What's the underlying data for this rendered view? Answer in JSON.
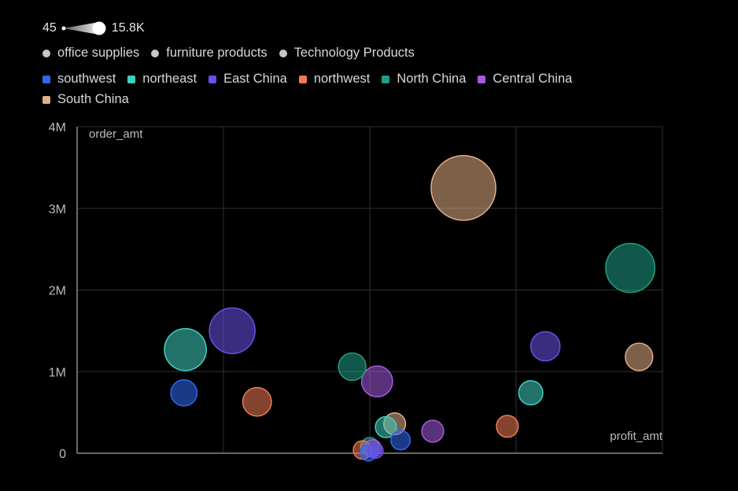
{
  "chart_data": {
    "type": "scatter",
    "subtype": "bubble",
    "xlabel": "profit_amt",
    "ylabel": "order_amt",
    "ylim": [
      0,
      4000000
    ],
    "xlim": [
      -600000,
      1400000
    ],
    "y_ticks": [
      {
        "value": 0,
        "label": "0"
      },
      {
        "value": 1000000,
        "label": "1M"
      },
      {
        "value": 2000000,
        "label": "2M"
      },
      {
        "value": 3000000,
        "label": "3M"
      },
      {
        "value": 4000000,
        "label": "4M"
      }
    ],
    "x_gridlines": [
      -600000,
      -100000,
      400000,
      900000,
      1400000
    ],
    "size_legend": {
      "min_label": "45",
      "max_label": "15.8K",
      "min": 45,
      "max": 15800
    },
    "shape_legend": [
      {
        "name": "office supplies",
        "color": "#c8c8c8"
      },
      {
        "name": "furniture products",
        "color": "#c8c8c8"
      },
      {
        "name": "Technology Products",
        "color": "#c8c8c8"
      }
    ],
    "color_legend": [
      {
        "name": "southwest",
        "color": "#2e6af0"
      },
      {
        "name": "northeast",
        "color": "#3fd0c0"
      },
      {
        "name": "East China",
        "color": "#6a50e6"
      },
      {
        "name": "northwest",
        "color": "#f07a55"
      },
      {
        "name": "North China",
        "color": "#1f9e86"
      },
      {
        "name": "Central China",
        "color": "#a45ae0"
      },
      {
        "name": "South China",
        "color": "#e2ae86"
      }
    ],
    "points": [
      {
        "region": "southwest",
        "x": -235000,
        "y": 740000,
        "size": 1800
      },
      {
        "region": "northeast",
        "x": -230000,
        "y": 1270000,
        "size": 5000
      },
      {
        "region": "East China",
        "x": -70000,
        "y": 1500000,
        "size": 6000
      },
      {
        "region": "northwest",
        "x": 15000,
        "y": 630000,
        "size": 2200
      },
      {
        "region": "North China",
        "x": 340000,
        "y": 1060000,
        "size": 2000
      },
      {
        "region": "Central China",
        "x": 425000,
        "y": 880000,
        "size": 2600
      },
      {
        "region": "South China",
        "x": 720000,
        "y": 3250000,
        "size": 12500
      },
      {
        "region": "East China",
        "x": 1000000,
        "y": 1310000,
        "size": 2300
      },
      {
        "region": "northeast",
        "x": 950000,
        "y": 740000,
        "size": 1500
      },
      {
        "region": "North China",
        "x": 1290000,
        "y": 2270000,
        "size": 7000
      },
      {
        "region": "South China",
        "x": 1320000,
        "y": 1180000,
        "size": 2000
      },
      {
        "region": "northwest",
        "x": 870000,
        "y": 330000,
        "size": 1200
      },
      {
        "region": "Central China",
        "x": 615000,
        "y": 270000,
        "size": 1200
      },
      {
        "region": "South China",
        "x": 485000,
        "y": 360000,
        "size": 1200
      },
      {
        "region": "northeast",
        "x": 455000,
        "y": 320000,
        "size": 1100
      },
      {
        "region": "southwest",
        "x": 505000,
        "y": 160000,
        "size": 900
      },
      {
        "region": "North China",
        "x": 400000,
        "y": 80000,
        "size": 800
      },
      {
        "region": "northwest",
        "x": 375000,
        "y": 40000,
        "size": 800
      },
      {
        "region": "Central China",
        "x": 410000,
        "y": 60000,
        "size": 700
      },
      {
        "region": "southwest",
        "x": 395000,
        "y": 5000,
        "size": 600
      },
      {
        "region": "East China",
        "x": 420000,
        "y": 30000,
        "size": 500
      }
    ]
  }
}
